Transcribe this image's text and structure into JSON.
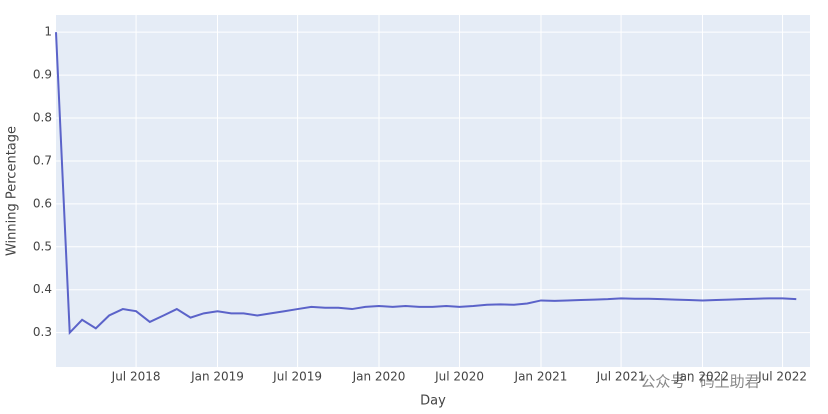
{
  "chart_data": {
    "type": "line",
    "x_label": "Day",
    "y_label": "Winning Percentage",
    "watermark": "公众号 · 码上助君",
    "x": [
      "2018-01",
      "2018-02",
      "2018-03",
      "2018-04",
      "2018-05",
      "2018-06",
      "2018-07",
      "2018-08",
      "2018-09",
      "2018-10",
      "2018-11",
      "2018-12",
      "2019-01",
      "2019-02",
      "2019-03",
      "2019-04",
      "2019-05",
      "2019-06",
      "2019-07",
      "2019-08",
      "2019-09",
      "2019-10",
      "2019-11",
      "2019-12",
      "2020-01",
      "2020-02",
      "2020-03",
      "2020-04",
      "2020-05",
      "2020-06",
      "2020-07",
      "2020-08",
      "2020-09",
      "2020-10",
      "2020-11",
      "2020-12",
      "2021-01",
      "2021-02",
      "2021-03",
      "2021-04",
      "2021-05",
      "2021-06",
      "2021-07",
      "2021-08",
      "2021-09",
      "2021-10",
      "2021-11",
      "2021-12",
      "2022-01",
      "2022-02",
      "2022-03",
      "2022-04",
      "2022-05",
      "2022-06",
      "2022-07",
      "2022-08"
    ],
    "series": [
      {
        "name": "Winning Percentage",
        "color": "#5b63c9",
        "values": [
          1.0,
          0.3,
          0.33,
          0.31,
          0.34,
          0.355,
          0.35,
          0.325,
          0.34,
          0.355,
          0.335,
          0.345,
          0.35,
          0.345,
          0.345,
          0.34,
          0.345,
          0.35,
          0.355,
          0.36,
          0.358,
          0.358,
          0.355,
          0.36,
          0.362,
          0.36,
          0.362,
          0.36,
          0.36,
          0.362,
          0.36,
          0.362,
          0.365,
          0.366,
          0.365,
          0.368,
          0.375,
          0.374,
          0.375,
          0.376,
          0.377,
          0.378,
          0.38,
          0.379,
          0.379,
          0.378,
          0.377,
          0.376,
          0.375,
          0.376,
          0.377,
          0.378,
          0.379,
          0.38,
          0.38,
          0.378
        ]
      }
    ],
    "xlim": [
      "2018-01",
      "2022-09"
    ],
    "xticks": [
      {
        "value": "2018-07",
        "label": "Jul 2018"
      },
      {
        "value": "2019-01",
        "label": "Jan 2019"
      },
      {
        "value": "2019-07",
        "label": "Jul 2019"
      },
      {
        "value": "2020-01",
        "label": "Jan 2020"
      },
      {
        "value": "2020-07",
        "label": "Jul 2020"
      },
      {
        "value": "2021-01",
        "label": "Jan 2021"
      },
      {
        "value": "2021-07",
        "label": "Jul 2021"
      },
      {
        "value": "2022-01",
        "label": "Jan 2022"
      },
      {
        "value": "2022-07",
        "label": "Jul 2022"
      }
    ],
    "ylim": [
      0.22,
      1.04
    ],
    "yticks": [
      0.3,
      0.4,
      0.5,
      0.6,
      0.7,
      0.8,
      0.9,
      1
    ],
    "grid": true
  }
}
